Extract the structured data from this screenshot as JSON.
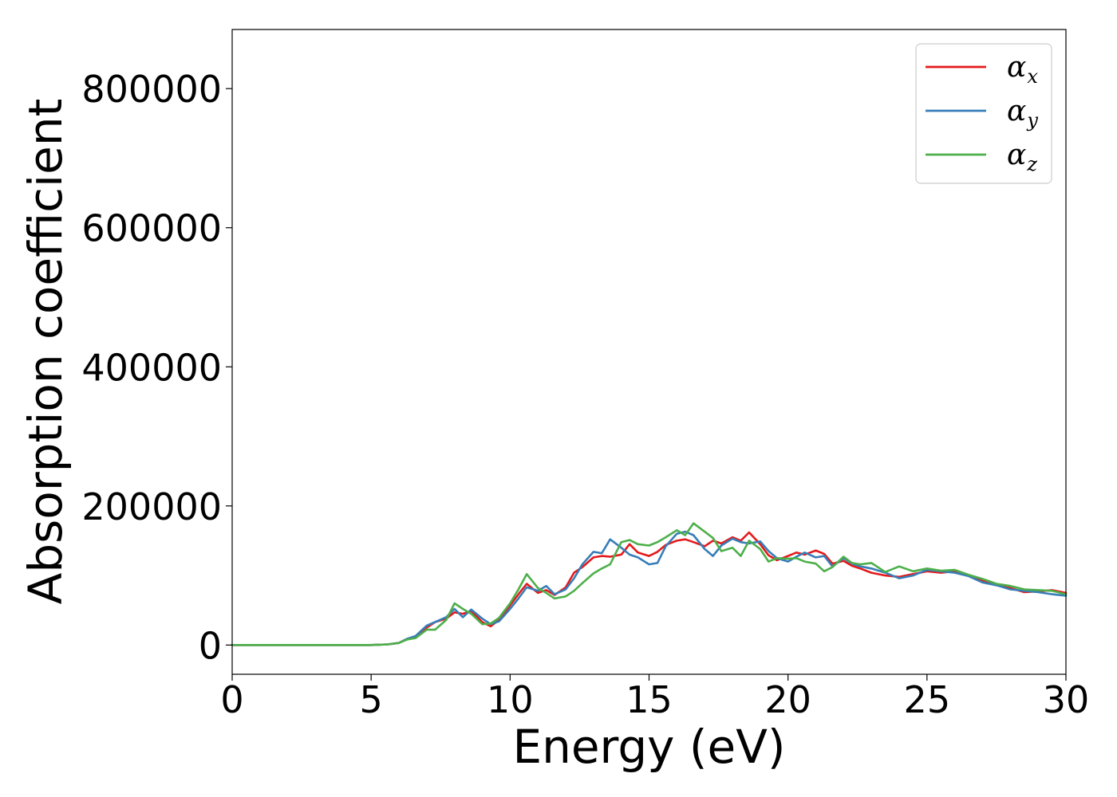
{
  "chart_data": {
    "type": "line",
    "title": "",
    "xlabel": "Energy (eV)",
    "ylabel": "Absorption coefficient",
    "xlim": [
      0,
      30
    ],
    "ylim": [
      -42000,
      885000
    ],
    "xticks": [
      "0",
      "5",
      "10",
      "15",
      "20",
      "25",
      "30"
    ],
    "yticks": [
      "0",
      "200000",
      "400000",
      "600000",
      "800000"
    ],
    "grid": false,
    "legend_position": "upper-right",
    "series": [
      {
        "name": "α_x",
        "symbol": "α",
        "subscript": "x",
        "color": "#e41a1c",
        "x": [
          0,
          5,
          5.6,
          6.0,
          6.3,
          6.6,
          7.0,
          7.3,
          7.7,
          8.0,
          8.3,
          8.6,
          9.0,
          9.3,
          9.6,
          10.0,
          10.3,
          10.6,
          11.0,
          11.3,
          11.6,
          12.0,
          12.3,
          12.6,
          13.0,
          13.3,
          13.6,
          14.0,
          14.3,
          14.6,
          15.0,
          15.3,
          15.6,
          16.0,
          16.3,
          16.6,
          17.0,
          17.3,
          17.6,
          18.0,
          18.3,
          18.6,
          19.0,
          19.3,
          19.6,
          20.0,
          20.3,
          20.6,
          21.0,
          21.3,
          21.6,
          22.0,
          22.3,
          22.6,
          23.0,
          23.5,
          24.0,
          24.5,
          25.0,
          25.5,
          26.0,
          26.5,
          27.0,
          27.5,
          28.0,
          28.5,
          29.0,
          29.5,
          30.0
        ],
        "values": [
          0,
          0,
          1000,
          3000,
          9000,
          12000,
          25000,
          33000,
          38000,
          47000,
          45000,
          49000,
          33000,
          27000,
          36000,
          57000,
          73000,
          88000,
          75000,
          79000,
          72000,
          83000,
          104000,
          112000,
          126000,
          128000,
          127000,
          130000,
          145000,
          133000,
          128000,
          134000,
          144000,
          150000,
          152000,
          148000,
          142000,
          150000,
          146000,
          155000,
          150000,
          162000,
          145000,
          129000,
          122000,
          128000,
          133000,
          130000,
          136000,
          131000,
          117000,
          121000,
          114000,
          110000,
          104000,
          100000,
          98000,
          102000,
          106000,
          104000,
          106000,
          100000,
          92000,
          86000,
          82000,
          76000,
          77000,
          79000,
          75000
        ]
      },
      {
        "name": "α_y",
        "symbol": "α",
        "subscript": "y",
        "color": "#377eb8",
        "x": [
          0,
          5,
          5.6,
          6.0,
          6.3,
          6.6,
          7.0,
          7.3,
          7.7,
          8.0,
          8.3,
          8.6,
          9.0,
          9.3,
          9.6,
          10.0,
          10.3,
          10.6,
          11.0,
          11.3,
          11.6,
          12.0,
          12.3,
          12.6,
          13.0,
          13.3,
          13.6,
          14.0,
          14.3,
          14.6,
          15.0,
          15.3,
          15.6,
          16.0,
          16.3,
          16.6,
          17.0,
          17.3,
          17.6,
          18.0,
          18.3,
          18.6,
          19.0,
          19.3,
          19.6,
          20.0,
          20.3,
          20.6,
          21.0,
          21.3,
          21.6,
          22.0,
          22.3,
          22.6,
          23.0,
          23.5,
          24.0,
          24.5,
          25.0,
          25.5,
          26.0,
          26.5,
          27.0,
          27.5,
          28.0,
          28.5,
          29.0,
          29.5,
          30.0
        ],
        "values": [
          0,
          0,
          1000,
          3000,
          9000,
          13000,
          28000,
          33000,
          40000,
          52000,
          40000,
          51000,
          38000,
          30000,
          34000,
          52000,
          67000,
          83000,
          78000,
          85000,
          73000,
          80000,
          96000,
          116000,
          134000,
          132000,
          152000,
          140000,
          130000,
          126000,
          116000,
          118000,
          142000,
          160000,
          163000,
          158000,
          138000,
          128000,
          143000,
          153000,
          148000,
          146000,
          149000,
          135000,
          125000,
          120000,
          127000,
          133000,
          126000,
          128000,
          113000,
          125000,
          117000,
          113000,
          110000,
          104000,
          96000,
          100000,
          108000,
          106000,
          104000,
          99000,
          90000,
          86000,
          80000,
          78000,
          76000,
          73000,
          71000
        ]
      },
      {
        "name": "α_z",
        "symbol": "α",
        "subscript": "z",
        "color": "#4daf4a",
        "x": [
          0,
          5,
          5.6,
          6.0,
          6.3,
          6.6,
          7.0,
          7.3,
          7.7,
          8.0,
          8.3,
          8.6,
          9.0,
          9.3,
          9.6,
          10.0,
          10.3,
          10.6,
          11.0,
          11.3,
          11.6,
          12.0,
          12.3,
          12.6,
          13.0,
          13.3,
          13.6,
          14.0,
          14.3,
          14.6,
          15.0,
          15.3,
          15.6,
          16.0,
          16.3,
          16.6,
          17.0,
          17.3,
          17.6,
          18.0,
          18.3,
          18.6,
          19.0,
          19.3,
          19.6,
          20.0,
          20.3,
          20.6,
          21.0,
          21.3,
          21.6,
          22.0,
          22.3,
          22.6,
          23.0,
          23.5,
          24.0,
          24.5,
          25.0,
          25.5,
          26.0,
          26.5,
          27.0,
          27.5,
          28.0,
          28.5,
          29.0,
          29.5,
          30.0
        ],
        "values": [
          0,
          0,
          1000,
          3000,
          8000,
          10000,
          22000,
          22000,
          36000,
          60000,
          52000,
          45000,
          30000,
          31000,
          39000,
          60000,
          80000,
          102000,
          82000,
          75000,
          67000,
          70000,
          78000,
          89000,
          103000,
          110000,
          116000,
          148000,
          151000,
          145000,
          143000,
          148000,
          155000,
          165000,
          158000,
          175000,
          163000,
          154000,
          135000,
          140000,
          128000,
          150000,
          138000,
          120000,
          125000,
          124000,
          125000,
          120000,
          117000,
          106000,
          112000,
          127000,
          118000,
          116000,
          118000,
          105000,
          113000,
          106000,
          110000,
          107000,
          108000,
          101000,
          95000,
          88000,
          85000,
          80000,
          79000,
          78000,
          73000
        ]
      }
    ]
  }
}
